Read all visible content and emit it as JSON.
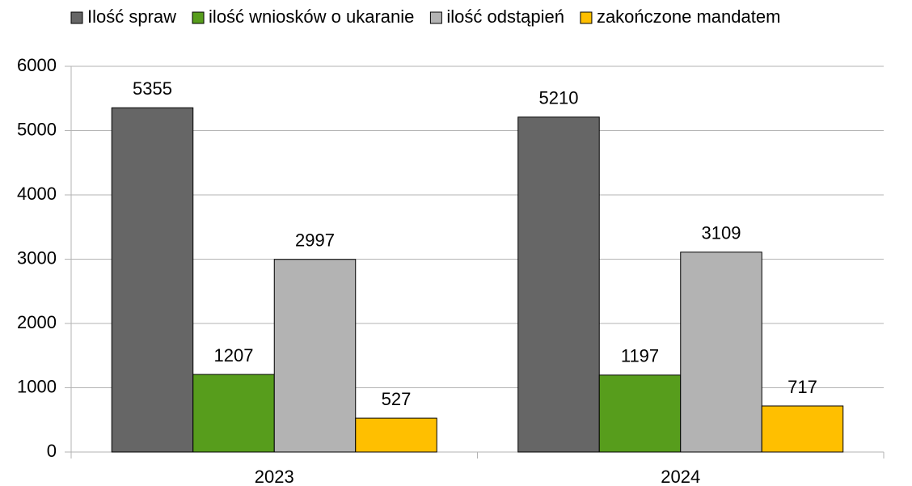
{
  "chart_data": {
    "type": "bar",
    "categories": [
      "2023",
      "2024"
    ],
    "series": [
      {
        "name": "Ilość spraw",
        "color": "#666666",
        "values": [
          5355,
          5210
        ]
      },
      {
        "name": "ilość wniosków o ukaranie",
        "color": "#579d1c",
        "values": [
          1207,
          1197
        ]
      },
      {
        "name": "ilość odstąpień",
        "color": "#b3b3b3",
        "values": [
          2997,
          3109
        ]
      },
      {
        "name": "zakończone mandatem",
        "color": "#ffbf00",
        "values": [
          527,
          717
        ]
      }
    ],
    "ylim": [
      0,
      6000
    ],
    "yticks": [
      0,
      1000,
      2000,
      3000,
      4000,
      5000,
      6000
    ],
    "grid": true,
    "legend": "top"
  }
}
